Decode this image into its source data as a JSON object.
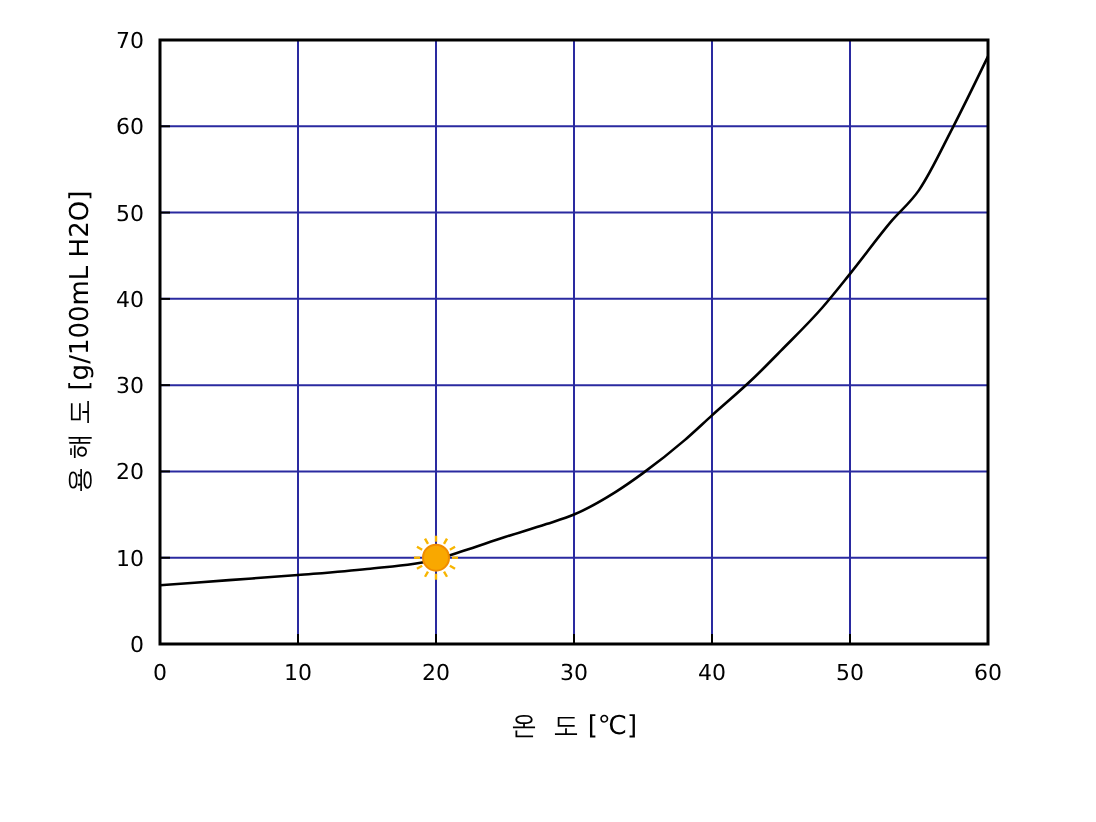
{
  "chart_data": {
    "type": "line",
    "xlabel": "온  도 [℃]",
    "ylabel": "용 해 도 [g/100mL H2O]",
    "xlim": [
      0,
      60
    ],
    "ylim": [
      0,
      70
    ],
    "xticks": [
      0,
      10,
      20,
      30,
      40,
      50,
      60
    ],
    "yticks": [
      0,
      10,
      20,
      30,
      40,
      50,
      60,
      70
    ],
    "grid": true,
    "marker": "none",
    "line_style": "solid",
    "series": [
      {
        "color": "#000000",
        "x": [
          0,
          5,
          10,
          15,
          20,
          22,
          25,
          28,
          30,
          33,
          35,
          38,
          40,
          43,
          45,
          48,
          50,
          53,
          55,
          57.4,
          60
        ],
        "values": [
          6.8,
          7.4,
          8.0,
          8.7,
          9.8,
          10.8,
          12.4,
          13.9,
          15.0,
          17.6,
          19.8,
          23.6,
          26.5,
          30.8,
          34.0,
          39.0,
          42.9,
          49.0,
          52.6,
          59.7,
          68.1
        ]
      }
    ]
  }
}
